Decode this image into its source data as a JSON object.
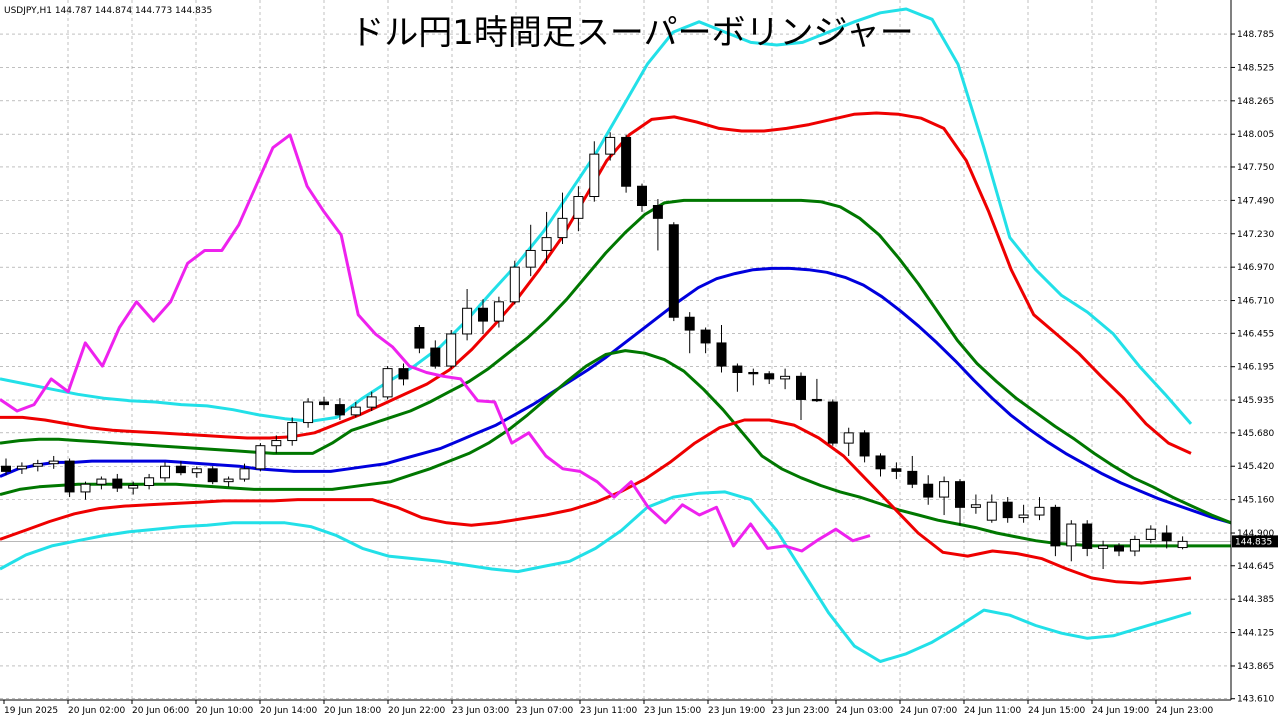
{
  "chart_data": {
    "type": "candlestick",
    "symbol_label": "USDJPY,H1  144.787 144.874 144.773 144.835",
    "title": "ドル円1時間足スーパーボリンジャー",
    "last_price": "144.835",
    "ylim": [
      143.6,
      149.05
    ],
    "y_ticks": [
      "148.785",
      "148.525",
      "148.265",
      "148.005",
      "147.750",
      "147.490",
      "147.230",
      "146.970",
      "146.710",
      "146.455",
      "146.195",
      "145.935",
      "145.680",
      "145.420",
      "145.160",
      "144.900",
      "144.645",
      "144.385",
      "144.125",
      "143.865",
      "143.610"
    ],
    "x_ticks": [
      "19 Jun 2025",
      "20 Jun 02:00",
      "20 Jun 06:00",
      "20 Jun 10:00",
      "20 Jun 14:00",
      "20 Jun 18:00",
      "20 Jun 22:00",
      "23 Jun 03:00",
      "23 Jun 07:00",
      "23 Jun 11:00",
      "23 Jun 15:00",
      "23 Jun 19:00",
      "23 Jun 23:00",
      "24 Jun 03:00",
      "24 Jun 07:00",
      "24 Jun 11:00",
      "24 Jun 15:00",
      "24 Jun 19:00",
      "24 Jun 23:00"
    ],
    "candles": [
      {
        "o": 145.42,
        "h": 145.48,
        "l": 145.35,
        "c": 145.38
      },
      {
        "o": 145.4,
        "h": 145.45,
        "l": 145.36,
        "c": 145.42
      },
      {
        "o": 145.42,
        "h": 145.47,
        "l": 145.38,
        "c": 145.44
      },
      {
        "o": 145.44,
        "h": 145.5,
        "l": 145.4,
        "c": 145.46
      },
      {
        "o": 145.46,
        "h": 145.48,
        "l": 145.18,
        "c": 145.22
      },
      {
        "o": 145.22,
        "h": 145.3,
        "l": 145.16,
        "c": 145.28
      },
      {
        "o": 145.28,
        "h": 145.34,
        "l": 145.24,
        "c": 145.32
      },
      {
        "o": 145.32,
        "h": 145.36,
        "l": 145.22,
        "c": 145.25
      },
      {
        "o": 145.25,
        "h": 145.3,
        "l": 145.2,
        "c": 145.27
      },
      {
        "o": 145.27,
        "h": 145.36,
        "l": 145.24,
        "c": 145.33
      },
      {
        "o": 145.33,
        "h": 145.45,
        "l": 145.3,
        "c": 145.42
      },
      {
        "o": 145.42,
        "h": 145.46,
        "l": 145.35,
        "c": 145.37
      },
      {
        "o": 145.37,
        "h": 145.42,
        "l": 145.33,
        "c": 145.4
      },
      {
        "o": 145.4,
        "h": 145.42,
        "l": 145.28,
        "c": 145.3
      },
      {
        "o": 145.3,
        "h": 145.34,
        "l": 145.26,
        "c": 145.32
      },
      {
        "o": 145.32,
        "h": 145.44,
        "l": 145.3,
        "c": 145.4
      },
      {
        "o": 145.4,
        "h": 145.6,
        "l": 145.38,
        "c": 145.58
      },
      {
        "o": 145.58,
        "h": 145.66,
        "l": 145.52,
        "c": 145.62
      },
      {
        "o": 145.62,
        "h": 145.8,
        "l": 145.58,
        "c": 145.76
      },
      {
        "o": 145.76,
        "h": 145.95,
        "l": 145.72,
        "c": 145.92
      },
      {
        "o": 145.92,
        "h": 145.96,
        "l": 145.86,
        "c": 145.9
      },
      {
        "o": 145.9,
        "h": 145.95,
        "l": 145.78,
        "c": 145.82
      },
      {
        "o": 145.82,
        "h": 145.92,
        "l": 145.8,
        "c": 145.88
      },
      {
        "o": 145.88,
        "h": 146.0,
        "l": 145.85,
        "c": 145.96
      },
      {
        "o": 145.96,
        "h": 146.2,
        "l": 145.94,
        "c": 146.18
      },
      {
        "o": 146.18,
        "h": 146.22,
        "l": 146.05,
        "c": 146.1
      },
      {
        "o": 146.5,
        "h": 146.52,
        "l": 146.3,
        "c": 146.34
      },
      {
        "o": 146.34,
        "h": 146.4,
        "l": 146.18,
        "c": 146.2
      },
      {
        "o": 146.2,
        "h": 146.48,
        "l": 146.18,
        "c": 146.45
      },
      {
        "o": 146.45,
        "h": 146.8,
        "l": 146.4,
        "c": 146.65
      },
      {
        "o": 146.65,
        "h": 146.72,
        "l": 146.45,
        "c": 146.55
      },
      {
        "o": 146.55,
        "h": 146.74,
        "l": 146.5,
        "c": 146.7
      },
      {
        "o": 146.7,
        "h": 147.02,
        "l": 146.68,
        "c": 146.97
      },
      {
        "o": 146.97,
        "h": 147.3,
        "l": 146.9,
        "c": 147.1
      },
      {
        "o": 147.1,
        "h": 147.4,
        "l": 147.0,
        "c": 147.2
      },
      {
        "o": 147.2,
        "h": 147.55,
        "l": 147.15,
        "c": 147.35
      },
      {
        "o": 147.35,
        "h": 147.6,
        "l": 147.25,
        "c": 147.52
      },
      {
        "o": 147.52,
        "h": 147.95,
        "l": 147.48,
        "c": 147.85
      },
      {
        "o": 147.85,
        "h": 148.02,
        "l": 147.8,
        "c": 147.98
      },
      {
        "o": 147.98,
        "h": 148.0,
        "l": 147.55,
        "c": 147.6
      },
      {
        "o": 147.6,
        "h": 147.62,
        "l": 147.4,
        "c": 147.45
      },
      {
        "o": 147.45,
        "h": 147.5,
        "l": 147.1,
        "c": 147.35
      },
      {
        "o": 147.3,
        "h": 147.32,
        "l": 146.55,
        "c": 146.58
      },
      {
        "o": 146.58,
        "h": 146.62,
        "l": 146.3,
        "c": 146.48
      },
      {
        "o": 146.48,
        "h": 146.5,
        "l": 146.3,
        "c": 146.38
      },
      {
        "o": 146.38,
        "h": 146.52,
        "l": 146.15,
        "c": 146.2
      },
      {
        "o": 146.2,
        "h": 146.22,
        "l": 146.0,
        "c": 146.15
      },
      {
        "o": 146.15,
        "h": 146.18,
        "l": 146.05,
        "c": 146.14
      },
      {
        "o": 146.14,
        "h": 146.16,
        "l": 146.06,
        "c": 146.1
      },
      {
        "o": 146.1,
        "h": 146.18,
        "l": 146.02,
        "c": 146.12
      },
      {
        "o": 146.12,
        "h": 146.15,
        "l": 145.78,
        "c": 145.94
      },
      {
        "o": 145.94,
        "h": 146.1,
        "l": 145.92,
        "c": 145.93
      },
      {
        "o": 145.92,
        "h": 145.94,
        "l": 145.58,
        "c": 145.6
      },
      {
        "o": 145.6,
        "h": 145.72,
        "l": 145.5,
        "c": 145.68
      },
      {
        "o": 145.68,
        "h": 145.7,
        "l": 145.45,
        "c": 145.5
      },
      {
        "o": 145.5,
        "h": 145.52,
        "l": 145.34,
        "c": 145.4
      },
      {
        "o": 145.4,
        "h": 145.45,
        "l": 145.32,
        "c": 145.38
      },
      {
        "o": 145.38,
        "h": 145.5,
        "l": 145.25,
        "c": 145.28
      },
      {
        "o": 145.28,
        "h": 145.35,
        "l": 145.12,
        "c": 145.18
      },
      {
        "o": 145.18,
        "h": 145.34,
        "l": 145.04,
        "c": 145.3
      },
      {
        "o": 145.3,
        "h": 145.32,
        "l": 144.96,
        "c": 145.1
      },
      {
        "o": 145.1,
        "h": 145.2,
        "l": 145.05,
        "c": 145.12
      },
      {
        "o": 145.0,
        "h": 145.2,
        "l": 144.98,
        "c": 145.14
      },
      {
        "o": 145.14,
        "h": 145.18,
        "l": 144.98,
        "c": 145.02
      },
      {
        "o": 145.02,
        "h": 145.12,
        "l": 144.98,
        "c": 145.04
      },
      {
        "o": 145.04,
        "h": 145.18,
        "l": 145.0,
        "c": 145.1
      },
      {
        "o": 145.1,
        "h": 145.12,
        "l": 144.72,
        "c": 144.8
      },
      {
        "o": 144.8,
        "h": 145.0,
        "l": 144.68,
        "c": 144.97
      },
      {
        "o": 144.97,
        "h": 145.0,
        "l": 144.72,
        "c": 144.78
      },
      {
        "o": 144.78,
        "h": 144.84,
        "l": 144.62,
        "c": 144.8
      },
      {
        "o": 144.8,
        "h": 144.82,
        "l": 144.72,
        "c": 144.76
      },
      {
        "o": 144.76,
        "h": 144.88,
        "l": 144.72,
        "c": 144.85
      },
      {
        "o": 144.85,
        "h": 144.96,
        "l": 144.82,
        "c": 144.93
      },
      {
        "o": 144.9,
        "h": 144.96,
        "l": 144.78,
        "c": 144.84
      },
      {
        "o": 144.787,
        "h": 144.874,
        "l": 144.773,
        "c": 144.835
      }
    ],
    "series": [
      {
        "key": "mid",
        "color": "#0000dd",
        "values": [
          145.34,
          145.4,
          145.43,
          145.45,
          145.45,
          145.46,
          145.46,
          145.46,
          145.46,
          145.46,
          145.45,
          145.44,
          145.43,
          145.42,
          145.4,
          145.39,
          145.38,
          145.38,
          145.38,
          145.4,
          145.42,
          145.44,
          145.48,
          145.52,
          145.56,
          145.62,
          145.68,
          145.74,
          145.82,
          145.9,
          145.99,
          146.08,
          146.17,
          146.27,
          146.38,
          146.49,
          146.6,
          146.71,
          146.81,
          146.88,
          146.92,
          146.95,
          146.96,
          146.96,
          146.95,
          146.93,
          146.89,
          146.83,
          146.74,
          146.63,
          146.51,
          146.38,
          146.24,
          146.09,
          145.95,
          145.82,
          145.71,
          145.61,
          145.52,
          145.44,
          145.36,
          145.29,
          145.23,
          145.17,
          145.12,
          145.07,
          145.02,
          144.98
        ]
      },
      {
        "key": "plus1",
        "color": "#007700",
        "values": [
          145.6,
          145.62,
          145.63,
          145.63,
          145.62,
          145.61,
          145.6,
          145.59,
          145.58,
          145.57,
          145.56,
          145.55,
          145.54,
          145.53,
          145.52,
          145.52,
          145.52,
          145.6,
          145.7,
          145.75,
          145.8,
          145.85,
          145.92,
          146.0,
          146.08,
          146.18,
          146.3,
          146.42,
          146.56,
          146.72,
          146.9,
          147.08,
          147.24,
          147.38,
          147.47,
          147.49,
          147.49,
          147.49,
          147.49,
          147.49,
          147.49,
          147.49,
          147.48,
          147.44,
          147.35,
          147.22,
          147.04,
          146.84,
          146.62,
          146.4,
          146.22,
          146.08,
          145.95,
          145.84,
          145.73,
          145.63,
          145.52,
          145.42,
          145.33,
          145.26,
          145.18,
          145.11,
          145.04,
          144.98
        ]
      },
      {
        "key": "minus1",
        "color": "#007700",
        "values": [
          145.2,
          145.24,
          145.26,
          145.27,
          145.28,
          145.28,
          145.28,
          145.28,
          145.28,
          145.28,
          145.27,
          145.26,
          145.25,
          145.24,
          145.24,
          145.24,
          145.24,
          145.24,
          145.26,
          145.28,
          145.3,
          145.35,
          145.4,
          145.46,
          145.52,
          145.6,
          145.7,
          145.82,
          145.95,
          146.08,
          146.2,
          146.29,
          146.32,
          146.3,
          146.25,
          146.16,
          146.02,
          145.86,
          145.68,
          145.5,
          145.4,
          145.33,
          145.27,
          145.22,
          145.18,
          145.13,
          145.08,
          145.04,
          145.0,
          144.97,
          144.94,
          144.9,
          144.87,
          144.84,
          144.82,
          144.81,
          144.8,
          144.8,
          144.8,
          144.8,
          144.8,
          144.8,
          144.8,
          144.8
        ]
      },
      {
        "key": "plus2",
        "color": "#ee0000",
        "values": [
          145.8,
          145.8,
          145.78,
          145.75,
          145.72,
          145.7,
          145.69,
          145.68,
          145.67,
          145.66,
          145.65,
          145.64,
          145.64,
          145.65,
          145.68,
          145.75,
          145.82,
          145.9,
          145.98,
          146.06,
          146.17,
          146.33,
          146.52,
          146.72,
          146.95,
          147.2,
          147.5,
          147.8,
          148.0,
          148.12,
          148.14,
          148.1,
          148.05,
          148.03,
          148.03,
          148.05,
          148.08,
          148.12,
          148.16,
          148.17,
          148.16,
          148.13,
          148.05,
          147.8,
          147.4,
          146.95,
          146.6,
          146.45,
          146.3,
          146.12,
          145.95,
          145.75,
          145.6,
          145.52
        ]
      },
      {
        "key": "minus2",
        "color": "#ee0000",
        "values": [
          144.85,
          144.92,
          144.99,
          145.05,
          145.09,
          145.11,
          145.12,
          145.13,
          145.14,
          145.15,
          145.15,
          145.15,
          145.16,
          145.16,
          145.16,
          145.16,
          145.1,
          145.02,
          144.98,
          144.96,
          144.98,
          145.01,
          145.04,
          145.08,
          145.14,
          145.22,
          145.32,
          145.45,
          145.6,
          145.72,
          145.78,
          145.78,
          145.74,
          145.64,
          145.5,
          145.3,
          145.1,
          144.9,
          144.75,
          144.72,
          144.76,
          144.74,
          144.7,
          144.62,
          144.55,
          144.52,
          144.51,
          144.53,
          144.55
        ]
      },
      {
        "key": "plus3",
        "color": "#22e0e8",
        "values": [
          146.1,
          146.06,
          146.02,
          145.98,
          145.95,
          145.93,
          145.92,
          145.9,
          145.89,
          145.86,
          145.82,
          145.79,
          145.77,
          145.8,
          145.95,
          146.08,
          146.2,
          146.35,
          146.55,
          146.78,
          147.0,
          147.25,
          147.55,
          147.85,
          148.2,
          148.55,
          148.8,
          148.88,
          148.8,
          148.72,
          148.7,
          148.72,
          148.8,
          148.88,
          148.95,
          148.98,
          148.9,
          148.55,
          147.9,
          147.2,
          146.95,
          146.75,
          146.62,
          146.45,
          146.2,
          145.98,
          145.75
        ]
      },
      {
        "key": "minus3",
        "color": "#22e0e8",
        "values": [
          144.62,
          144.73,
          144.8,
          144.84,
          144.88,
          144.91,
          144.93,
          144.95,
          144.96,
          144.98,
          144.98,
          144.98,
          144.95,
          144.88,
          144.78,
          144.72,
          144.7,
          144.68,
          144.65,
          144.62,
          144.6,
          144.64,
          144.68,
          144.78,
          144.92,
          145.1,
          145.18,
          145.21,
          145.22,
          145.16,
          144.92,
          144.6,
          144.28,
          144.02,
          143.9,
          143.96,
          144.05,
          144.17,
          144.3,
          144.26,
          144.18,
          144.12,
          144.08,
          144.1,
          144.16,
          144.22,
          144.28
        ]
      },
      {
        "key": "chikou",
        "color": "#ee22ee",
        "values": [
          145.94,
          145.85,
          145.9,
          146.1,
          146.0,
          146.38,
          146.2,
          146.5,
          146.7,
          146.55,
          146.7,
          147.0,
          147.1,
          147.1,
          147.3,
          147.6,
          147.9,
          148.0,
          147.6,
          147.4,
          147.22,
          146.6,
          146.45,
          146.35,
          146.2,
          146.15,
          146.12,
          146.1,
          145.93,
          145.92,
          145.6,
          145.68,
          145.5,
          145.4,
          145.38,
          145.3,
          145.18,
          145.3,
          145.1,
          144.98,
          145.12,
          145.04,
          145.1,
          144.8,
          144.97,
          144.78,
          144.8,
          144.76,
          144.85,
          144.93,
          144.84,
          144.88
        ]
      }
    ],
    "series_x": {
      "mid": [
        0,
        1,
        2,
        3,
        4,
        5,
        6,
        7,
        8,
        9,
        10,
        11,
        12,
        13,
        14,
        15,
        16,
        17,
        18,
        19,
        20,
        21,
        22,
        23,
        24,
        25,
        26,
        27,
        28,
        29,
        30,
        31,
        32,
        33,
        34,
        35,
        36,
        37,
        38,
        39,
        40,
        41,
        42,
        43,
        44,
        45,
        46,
        47,
        48,
        49,
        50,
        51,
        52,
        53,
        54,
        55,
        56,
        57,
        58,
        59,
        60,
        61,
        62,
        63,
        64,
        65,
        66,
        67
      ]
    }
  }
}
